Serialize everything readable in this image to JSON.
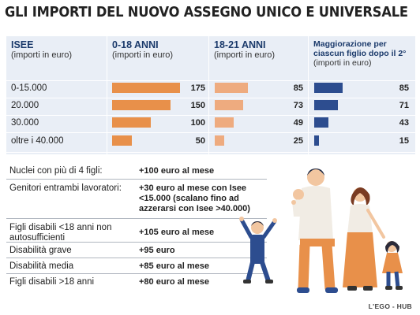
{
  "title": "GLI IMPORTI DEL NUOVO ASSEGNO UNICO E UNIVERSALE",
  "table": {
    "headers": [
      {
        "label": "ISEE",
        "sub": "(importi in euro)"
      },
      {
        "label": "0-18 ANNI",
        "sub": "(importi in euro)"
      },
      {
        "label": "18-21 ANNI",
        "sub": "(importi in euro)"
      },
      {
        "label": "Maggiorazione per ciascun figlio dopo il 2°",
        "sub": "(importi in euro)"
      }
    ]
  },
  "chart_data": {
    "type": "bar",
    "categories": [
      "0-15.000",
      "20.000",
      "30.000",
      "oltre i 40.000"
    ],
    "series": [
      {
        "name": "0-18 ANNI",
        "values": [
          175,
          150,
          100,
          50
        ],
        "color": "#e8904a"
      },
      {
        "name": "18-21 ANNI",
        "values": [
          85,
          73,
          49,
          25
        ],
        "color": "#eeab7f"
      },
      {
        "name": "Maggiorazione per ciascun figlio dopo il 2°",
        "values": [
          85,
          71,
          43,
          15
        ],
        "color": "#2d4d8f"
      }
    ],
    "xlabel": "ISEE",
    "ylabel": "(importi in euro)"
  },
  "info": [
    {
      "label": "Nuclei con più di 4 figli:",
      "value": "+100 euro al mese"
    },
    {
      "label": "Genitori entrambi lavoratori:",
      "value": "+30 euro al mese con Isee <15.000 (scalano fino ad azzerarsi con Isee >40.000)"
    },
    {
      "label": "Figli disabili <18 anni non autosufficienti",
      "value": "+105 euro al mese"
    },
    {
      "label": "Disabilità grave",
      "value": "+95 euro"
    },
    {
      "label": "Disabilità media",
      "value": "+85 euro al mese"
    },
    {
      "label": "Figli disabili >18 anni",
      "value": "+80 euro al mese"
    }
  ],
  "credit": "L'EGO - HUB",
  "icons": {
    "illustration": "family-illustration"
  }
}
